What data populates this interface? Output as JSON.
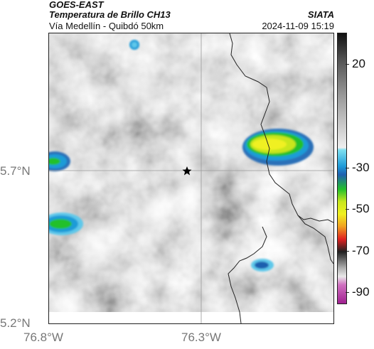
{
  "header": {
    "satellite": "GOES-EAST",
    "product": "Temperatura de Brillo CH13",
    "region": "Vía Medellín - Quibdó 50km",
    "organization": "SIATA",
    "timestamp": "2024-11-09 15:19"
  },
  "axes": {
    "lat_labels": [
      "5.7°N",
      "5.2°N"
    ],
    "lon_labels": [
      "76.8°W",
      "76.3°W"
    ]
  },
  "colorbar": {
    "labels": [
      "20",
      "-30",
      "-50",
      "-70",
      "-90"
    ],
    "values": [
      20,
      -30,
      -50,
      -70,
      -90
    ],
    "range": [
      -95,
      35
    ]
  },
  "map": {
    "marker": "star-marker",
    "colors": {
      "cold_edge": "#1f9bd8",
      "cold_mid": "#22c02a",
      "cold_core": "#f0f020",
      "boundary": "#222222",
      "gridline": "#9a9a9a"
    }
  }
}
